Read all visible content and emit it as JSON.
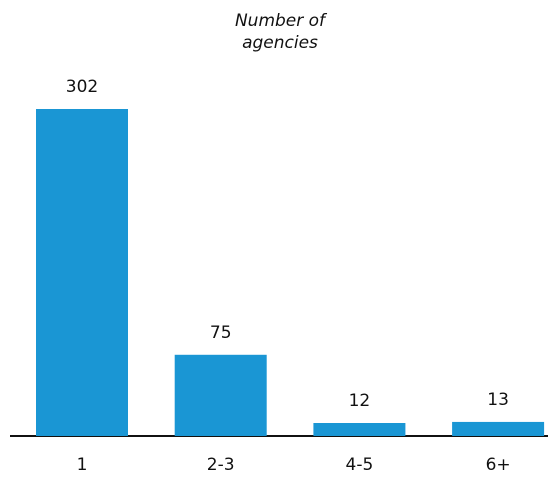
{
  "chart_data": {
    "type": "bar",
    "title": "Number of agencies",
    "categories": [
      "1",
      "2-3",
      "4-5",
      "6+"
    ],
    "values": [
      302,
      75,
      12,
      13
    ],
    "color": "#1a96d4"
  }
}
